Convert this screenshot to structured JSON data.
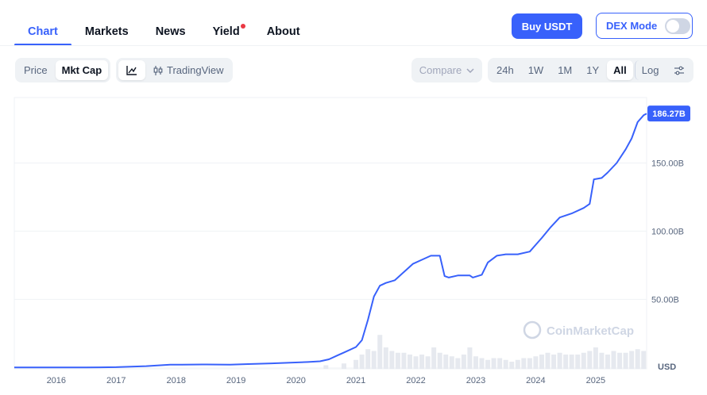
{
  "nav": {
    "tabs": [
      {
        "label": "Chart",
        "active": true
      },
      {
        "label": "Markets",
        "active": false
      },
      {
        "label": "News",
        "active": false
      },
      {
        "label": "Yield",
        "active": false,
        "badge": true
      },
      {
        "label": "About",
        "active": false
      }
    ],
    "buy_label": "Buy USDT",
    "dex_label": "DEX Mode",
    "dex_enabled": false
  },
  "toolbar": {
    "metric_options": [
      {
        "label": "Price",
        "selected": false
      },
      {
        "label": "Mkt Cap",
        "selected": true
      }
    ],
    "chart_style": {
      "line_icon": "line-chart-icon",
      "tradingview_label": "TradingView",
      "tradingview_icon": "candlestick-icon"
    },
    "compare_label": "Compare",
    "ranges": [
      {
        "label": "24h",
        "selected": false
      },
      {
        "label": "1W",
        "selected": false
      },
      {
        "label": "1M",
        "selected": false
      },
      {
        "label": "1Y",
        "selected": false
      },
      {
        "label": "All",
        "selected": true
      }
    ],
    "log_label": "Log",
    "settings_icon": "sliders-icon"
  },
  "chart_data": {
    "type": "area",
    "title": "",
    "xlabel": "",
    "ylabel": "",
    "currency_label": "USD",
    "watermark": "CoinMarketCap",
    "current_value_label": "186.27B",
    "line_color": "#3861fb",
    "ylim": [
      -1,
      198
    ],
    "xlim": [
      2015.3,
      2025.85
    ],
    "y_ticks": [
      {
        "value": 50,
        "label": "50.00B"
      },
      {
        "value": 100,
        "label": "100.00B"
      },
      {
        "value": 150,
        "label": "150.00B"
      }
    ],
    "x_ticks": [
      {
        "value": 2016,
        "label": "2016"
      },
      {
        "value": 2017,
        "label": "2017"
      },
      {
        "value": 2018,
        "label": "2018"
      },
      {
        "value": 2019,
        "label": "2019"
      },
      {
        "value": 2020,
        "label": "2020"
      },
      {
        "value": 2021,
        "label": "2021"
      },
      {
        "value": 2022,
        "label": "2022"
      },
      {
        "value": 2023,
        "label": "2023"
      },
      {
        "value": 2024,
        "label": "2024"
      },
      {
        "value": 2025,
        "label": "2025"
      }
    ],
    "series": [
      {
        "x": [
          2015.3,
          2016.0,
          2016.5,
          2017.0,
          2017.5,
          2017.9,
          2018.1,
          2018.5,
          2018.9,
          2019.2,
          2019.6,
          2019.9,
          2020.2,
          2020.4,
          2020.55,
          2020.7,
          2020.8,
          2021.0,
          2021.1,
          2021.2,
          2021.3,
          2021.4,
          2021.5,
          2021.65,
          2021.8,
          2021.95,
          2022.1,
          2022.25,
          2022.4,
          2022.48,
          2022.55,
          2022.7,
          2022.9,
          2022.95,
          2023.1,
          2023.2,
          2023.35,
          2023.5,
          2023.7,
          2023.9,
          2024.0,
          2024.1,
          2024.25,
          2024.4,
          2024.6,
          2024.8,
          2024.9,
          2024.97,
          2025.1,
          2025.2,
          2025.35,
          2025.5,
          2025.6,
          2025.7,
          2025.8,
          2025.85
        ],
        "y": [
          0.0,
          0.0,
          0.0,
          0.2,
          1.0,
          2.0,
          2.0,
          2.2,
          2.0,
          2.5,
          3.0,
          3.5,
          4.0,
          4.5,
          6.0,
          9.0,
          11.0,
          15.0,
          20.0,
          35.0,
          52.0,
          60.0,
          62.0,
          64.0,
          70.0,
          76.0,
          79.0,
          82.0,
          82.0,
          67.0,
          66.0,
          67.5,
          67.5,
          66.0,
          68.0,
          77.0,
          82.0,
          83.0,
          83.0,
          85.0,
          90.0,
          95.0,
          103.0,
          110.0,
          113.0,
          117.0,
          120.0,
          138.0,
          139.0,
          143.0,
          150.0,
          160.0,
          168.0,
          180.0,
          185.0,
          186.27
        ]
      }
    ],
    "volume": {
      "x": [
        2020.5,
        2020.8,
        2021.0,
        2021.1,
        2021.2,
        2021.3,
        2021.4,
        2021.5,
        2021.6,
        2021.7,
        2021.8,
        2021.9,
        2022.0,
        2022.1,
        2022.2,
        2022.3,
        2022.4,
        2022.5,
        2022.6,
        2022.7,
        2022.8,
        2022.9,
        2023.0,
        2023.1,
        2023.2,
        2023.3,
        2023.4,
        2023.5,
        2023.6,
        2023.7,
        2023.8,
        2023.9,
        2024.0,
        2024.1,
        2024.2,
        2024.3,
        2024.4,
        2024.5,
        2024.6,
        2024.7,
        2024.8,
        2024.9,
        2025.0,
        2025.1,
        2025.2,
        2025.3,
        2025.4,
        2025.5,
        2025.6,
        2025.7,
        2025.8
      ],
      "values": [
        0.1,
        0.15,
        0.25,
        0.4,
        0.55,
        0.5,
        0.95,
        0.6,
        0.5,
        0.45,
        0.45,
        0.4,
        0.35,
        0.4,
        0.35,
        0.6,
        0.45,
        0.4,
        0.35,
        0.3,
        0.4,
        0.6,
        0.35,
        0.3,
        0.25,
        0.3,
        0.3,
        0.25,
        0.2,
        0.25,
        0.3,
        0.3,
        0.35,
        0.4,
        0.45,
        0.4,
        0.45,
        0.4,
        0.4,
        0.4,
        0.45,
        0.5,
        0.6,
        0.45,
        0.4,
        0.5,
        0.45,
        0.45,
        0.5,
        0.55,
        0.5
      ]
    }
  }
}
